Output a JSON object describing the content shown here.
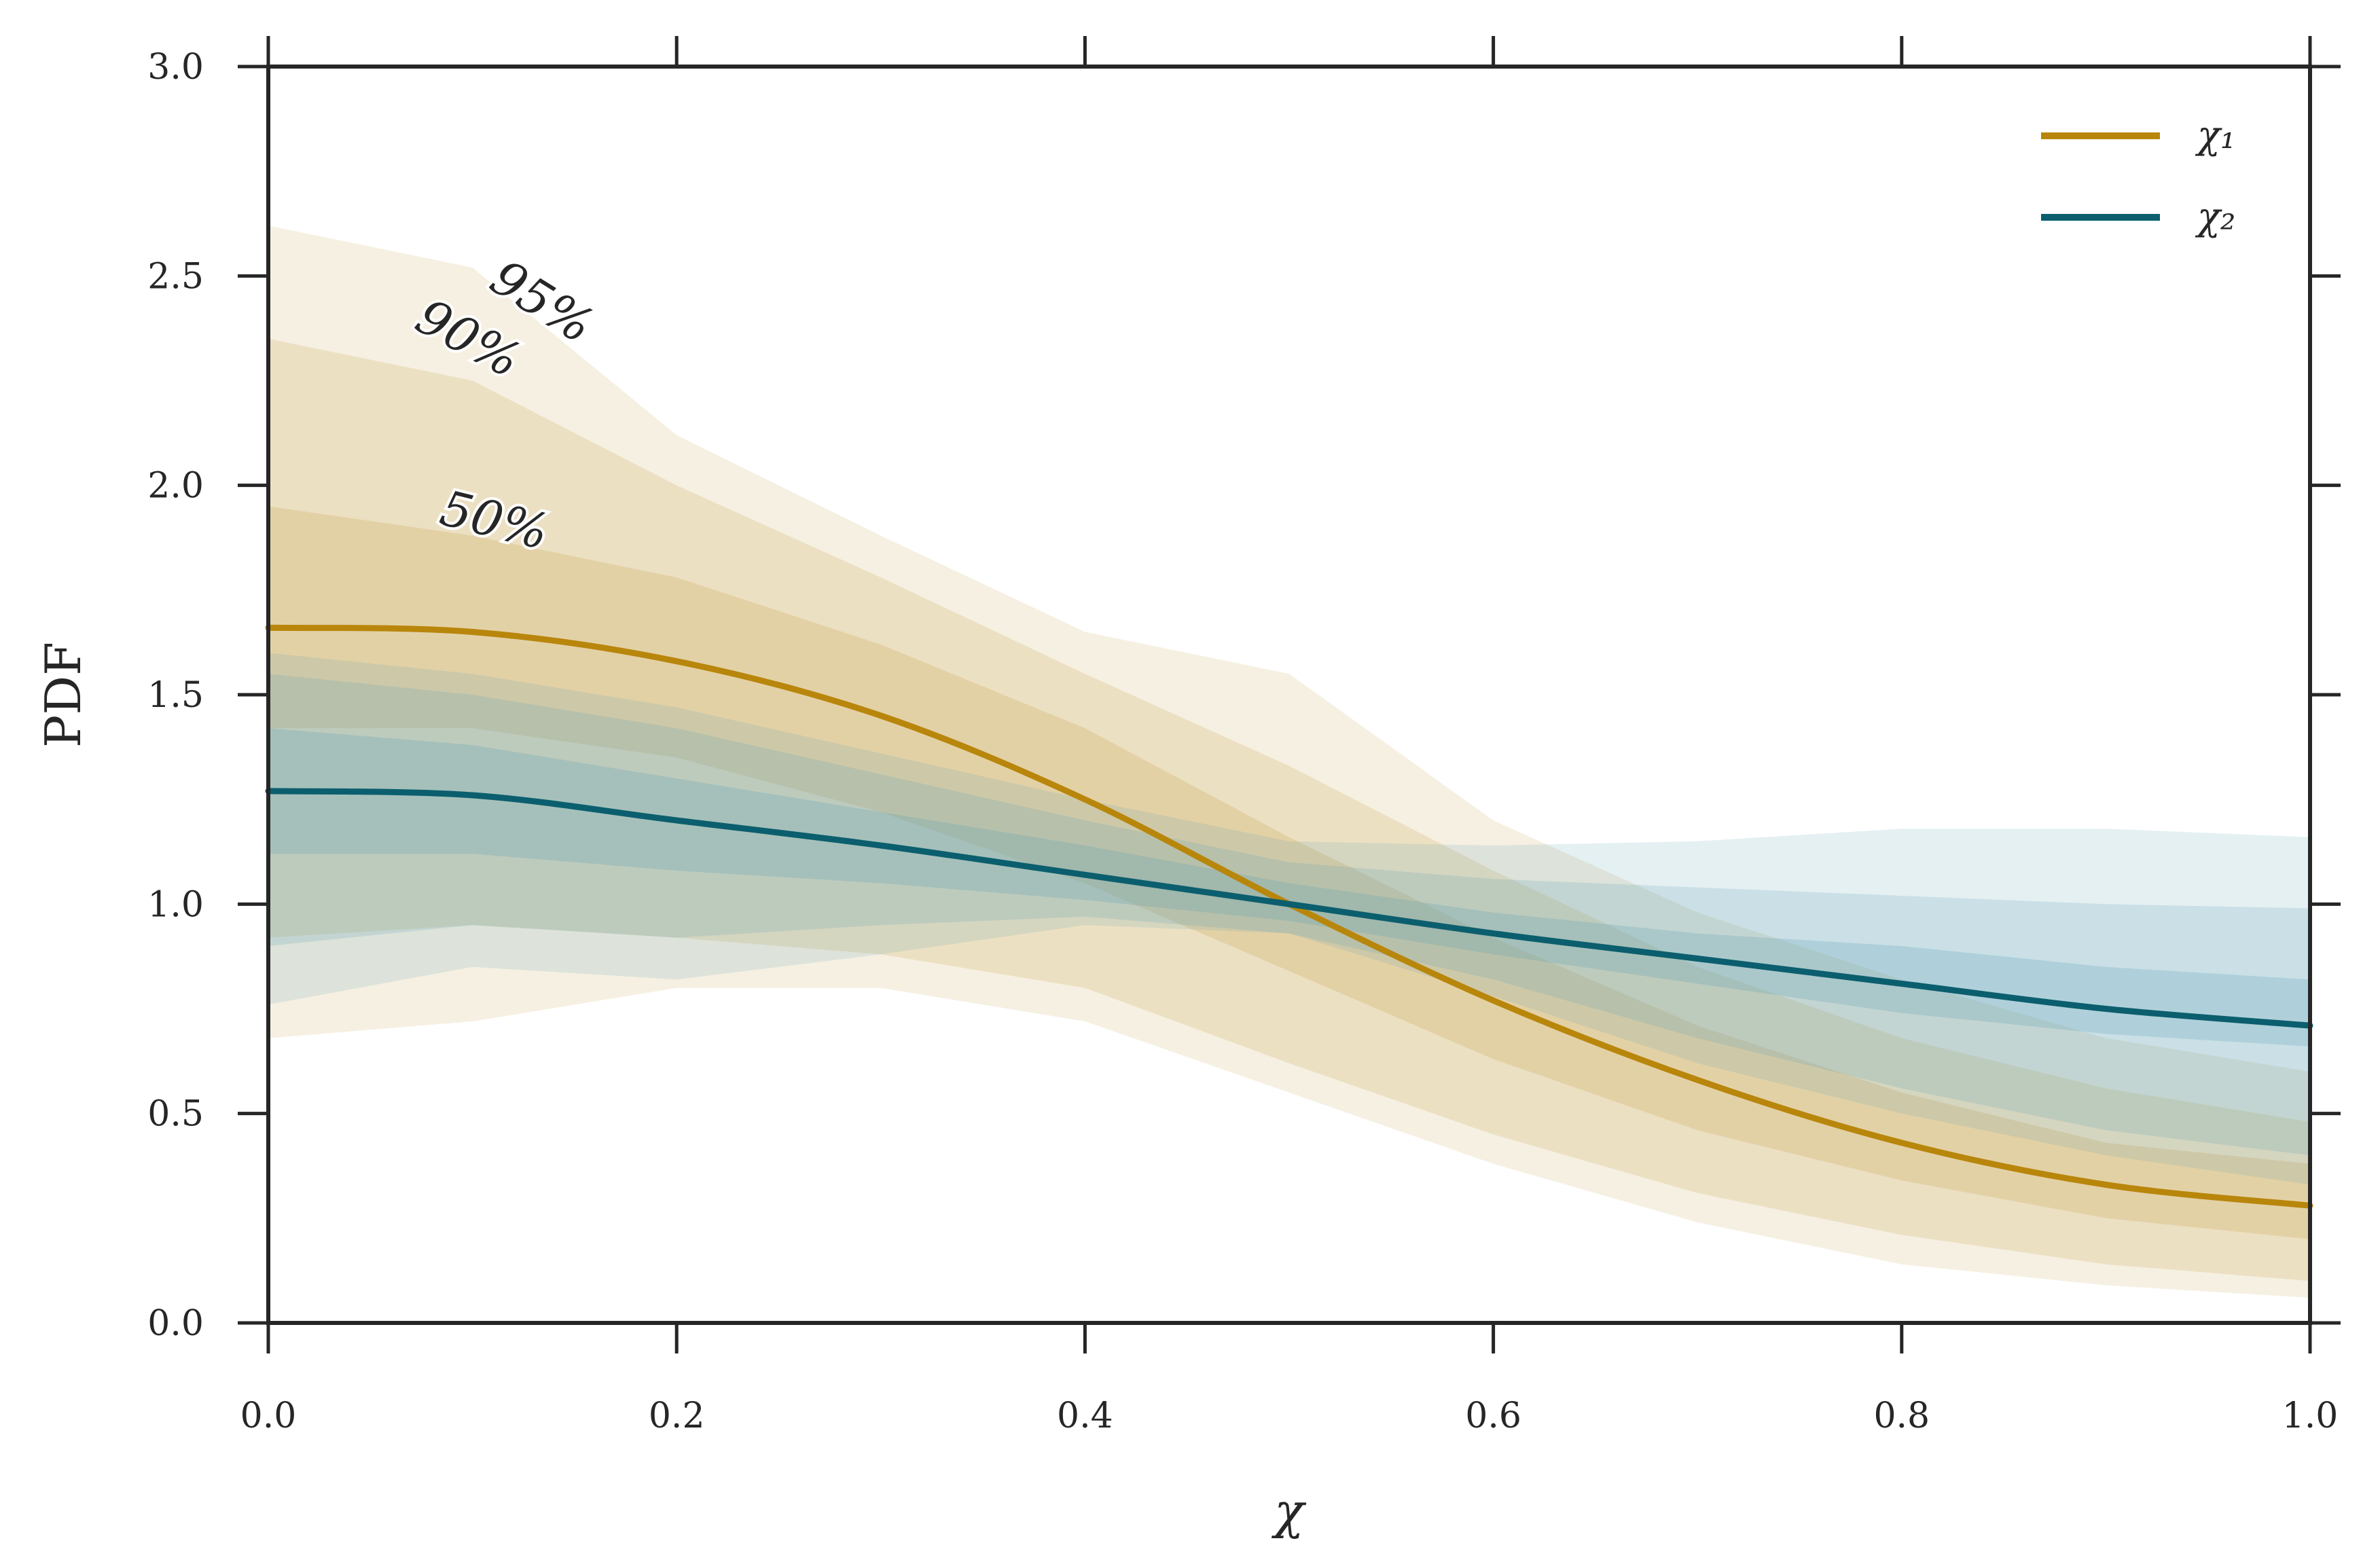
{
  "chart_data": {
    "type": "area",
    "xlabel": "χ",
    "ylabel": "PDF",
    "xlim": [
      0.0,
      1.0
    ],
    "ylim": [
      0.0,
      3.0
    ],
    "xticks": [
      "0.0",
      "0.2",
      "0.4",
      "0.6",
      "0.8",
      "1.0"
    ],
    "yticks": [
      "0.0",
      "0.5",
      "1.0",
      "1.5",
      "2.0",
      "2.5",
      "3.0"
    ],
    "legend_position": "top-right",
    "colors": {
      "chi1": "#b8860b",
      "chi2": "#0b5e6e",
      "chi1_band": "#c9a14a",
      "chi2_band": "#5e9fb5"
    },
    "band_labels": [
      "95%",
      "90%",
      "50%"
    ],
    "x": [
      0.0,
      0.1,
      0.2,
      0.3,
      0.4,
      0.5,
      0.6,
      0.7,
      0.8,
      0.9,
      1.0
    ],
    "series": [
      {
        "name": "χ₁",
        "median": [
          1.66,
          1.65,
          1.58,
          1.45,
          1.25,
          1.0,
          0.77,
          0.58,
          0.43,
          0.33,
          0.28
        ],
        "band50": {
          "lo": [
            1.42,
            1.42,
            1.35,
            1.22,
            1.05,
            0.84,
            0.63,
            0.46,
            0.34,
            0.25,
            0.2
          ],
          "hi": [
            1.95,
            1.88,
            1.78,
            1.62,
            1.42,
            1.16,
            0.92,
            0.71,
            0.55,
            0.43,
            0.38
          ]
        },
        "band90": {
          "lo": [
            0.92,
            0.95,
            0.92,
            0.88,
            0.8,
            0.62,
            0.45,
            0.31,
            0.21,
            0.14,
            0.1
          ],
          "hi": [
            2.35,
            2.25,
            2.0,
            1.78,
            1.55,
            1.33,
            1.08,
            0.85,
            0.68,
            0.56,
            0.48
          ]
        },
        "band95": {
          "lo": [
            0.68,
            0.72,
            0.8,
            0.8,
            0.72,
            0.55,
            0.38,
            0.24,
            0.14,
            0.09,
            0.06
          ],
          "hi": [
            2.62,
            2.52,
            2.12,
            1.88,
            1.65,
            1.55,
            1.2,
            0.98,
            0.82,
            0.68,
            0.6
          ]
        }
      },
      {
        "name": "χ₂",
        "median": [
          1.27,
          1.26,
          1.2,
          1.14,
          1.07,
          1.0,
          0.93,
          0.87,
          0.81,
          0.75,
          0.71
        ],
        "band50": {
          "lo": [
            1.12,
            1.12,
            1.08,
            1.05,
            1.01,
            0.96,
            0.88,
            0.81,
            0.74,
            0.69,
            0.66
          ],
          "hi": [
            1.42,
            1.38,
            1.3,
            1.22,
            1.14,
            1.05,
            0.98,
            0.93,
            0.9,
            0.85,
            0.82
          ]
        },
        "band90": {
          "lo": [
            0.9,
            0.95,
            0.92,
            0.95,
            0.97,
            0.93,
            0.82,
            0.68,
            0.56,
            0.46,
            0.4
          ],
          "hi": [
            1.55,
            1.5,
            1.42,
            1.31,
            1.2,
            1.1,
            1.06,
            1.04,
            1.02,
            1.0,
            0.99
          ]
        },
        "band95": {
          "lo": [
            0.76,
            0.85,
            0.82,
            0.88,
            0.95,
            0.93,
            0.78,
            0.62,
            0.5,
            0.4,
            0.33
          ],
          "hi": [
            1.6,
            1.55,
            1.47,
            1.36,
            1.25,
            1.15,
            1.14,
            1.15,
            1.18,
            1.18,
            1.16
          ]
        }
      }
    ]
  }
}
